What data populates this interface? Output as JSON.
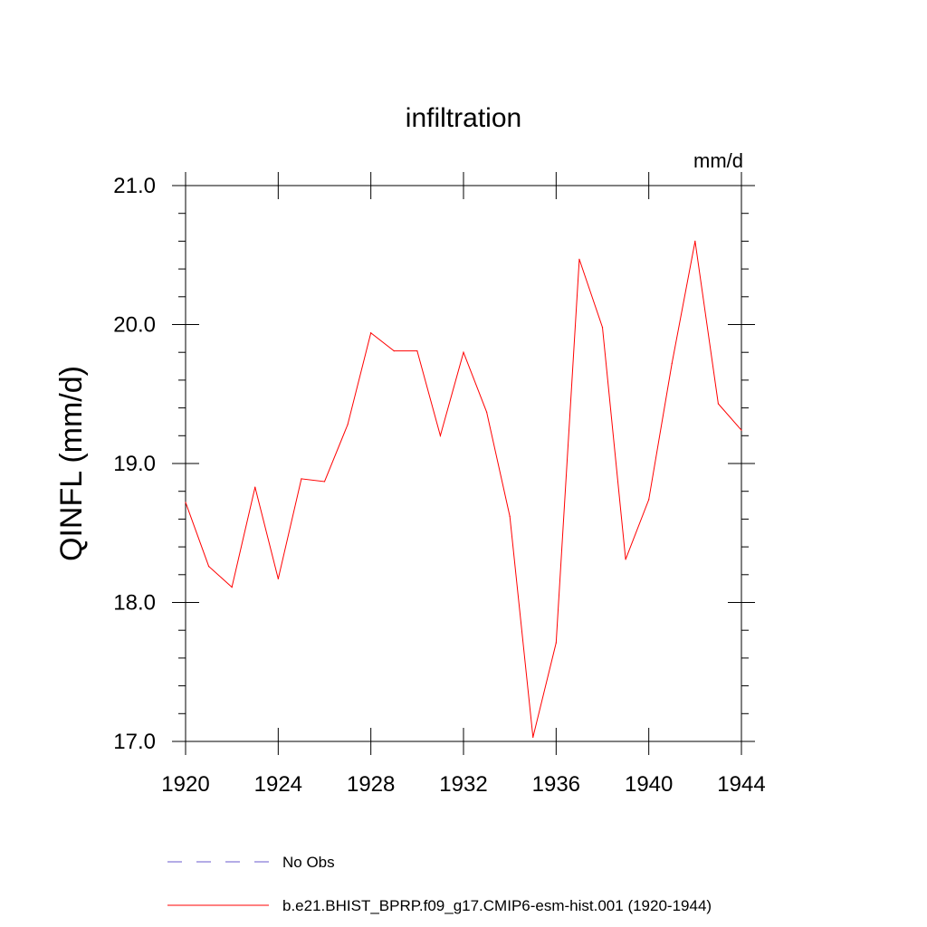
{
  "chart_data": {
    "type": "line",
    "title": "infiltration",
    "units_label": "mm/d",
    "xlabel": "",
    "ylabel": "QINFL  (mm/d)",
    "xlim": [
      1920,
      1944
    ],
    "ylim": [
      17.0,
      21.0
    ],
    "x_ticks": [
      1920,
      1924,
      1928,
      1932,
      1936,
      1940,
      1944
    ],
    "x_tick_labels": [
      "1920",
      "1924",
      "1928",
      "1932",
      "1936",
      "1940",
      "1944"
    ],
    "y_ticks": [
      17.0,
      18.0,
      19.0,
      20.0,
      21.0
    ],
    "y_tick_labels": [
      "17.0",
      "18.0",
      "19.0",
      "20.0",
      "21.0"
    ],
    "grid": false,
    "legend_position": "bottom",
    "series": [
      {
        "name": "b.e21.BHIST_BPRP.f09_g17.CMIP6-esm-hist.001 (1920-1944)",
        "color": "#ff0000",
        "style": "solid",
        "x": [
          1920,
          1921,
          1922,
          1923,
          1924,
          1925,
          1926,
          1927,
          1928,
          1929,
          1930,
          1931,
          1932,
          1933,
          1934,
          1935,
          1936,
          1937,
          1938,
          1939,
          1940,
          1941,
          1942,
          1943,
          1944
        ],
        "values": [
          18.72,
          18.26,
          18.11,
          18.83,
          18.17,
          18.89,
          18.87,
          19.28,
          19.94,
          19.81,
          19.81,
          19.2,
          19.8,
          19.37,
          18.62,
          17.03,
          17.71,
          20.47,
          19.98,
          18.31,
          18.74,
          19.72,
          20.6,
          19.43,
          19.24
        ]
      }
    ],
    "legend": [
      {
        "label": "No Obs",
        "color": "#6a5acd",
        "style": "dashed"
      },
      {
        "label": "b.e21.BHIST_BPRP.f09_g17.CMIP6-esm-hist.001 (1920-1944)",
        "color": "#ff0000",
        "style": "solid"
      }
    ]
  }
}
